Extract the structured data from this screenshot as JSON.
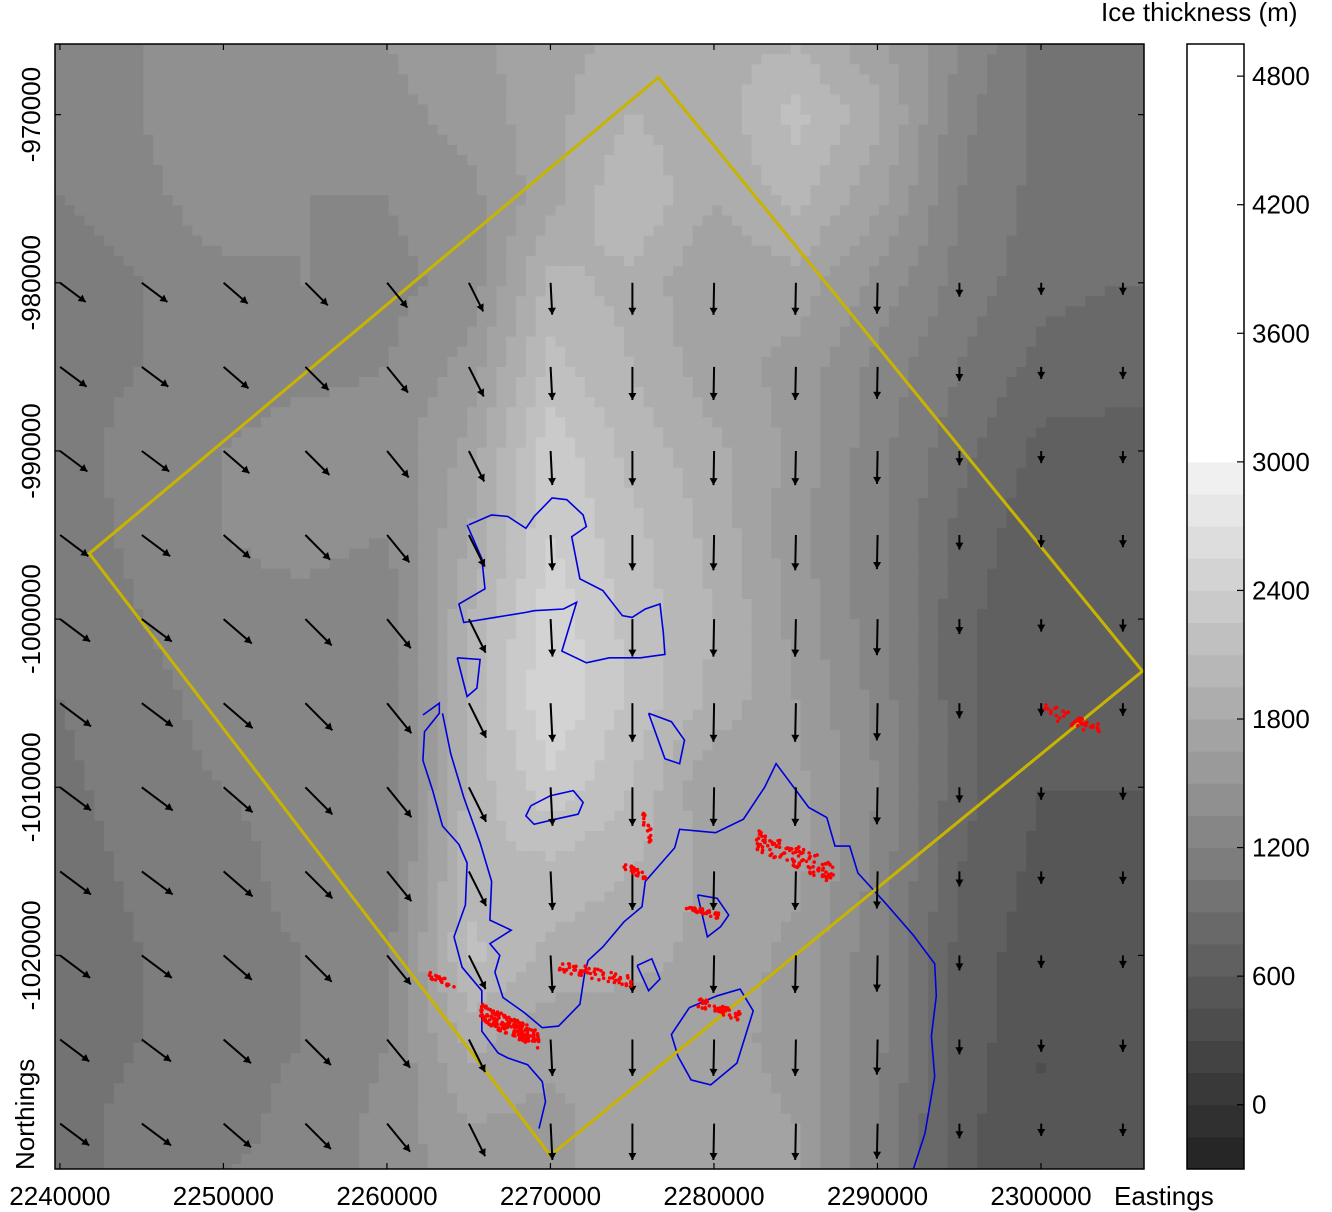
{
  "chart_data": {
    "type": "heatmap",
    "description_layers": [
      "ice thickness contour field",
      "flow direction arrows",
      "blue outline",
      "red point clusters",
      "yellow survey boundary"
    ],
    "xlabel": "Eastings",
    "ylabel": "Northings",
    "xlim": [
      2239700,
      2306300
    ],
    "ylim": [
      -1032700,
      -965800
    ],
    "x_ticks": [
      2240000,
      2250000,
      2260000,
      2270000,
      2280000,
      2290000,
      2300000
    ],
    "x_tick_labels": [
      "2240000",
      "2250000",
      "2260000",
      "2270000",
      "2280000",
      "2290000",
      "2300000"
    ],
    "y_ticks": [
      -970000,
      -980000,
      -990000,
      -1000000,
      -1010000,
      -1020000
    ],
    "y_tick_labels": [
      "-970000",
      "-980000",
      "-990000",
      "-1000000",
      "-1010000",
      "-1020000"
    ],
    "colorbar": {
      "title": "Ice thickness (m)",
      "range": [
        -300,
        4950
      ],
      "ticks": [
        0,
        600,
        1200,
        1800,
        2400,
        3000,
        3600,
        4200,
        4800
      ],
      "tick_labels": [
        "0",
        "600",
        "1200",
        "1800",
        "2400",
        "3000",
        "3600",
        "4200",
        "4800"
      ],
      "levels": [
        -300,
        -150,
        0,
        150,
        300,
        450,
        600,
        750,
        900,
        1050,
        1200,
        1350,
        1500,
        1650,
        1800,
        1950,
        2100,
        2250,
        2400,
        2550,
        2700,
        2850,
        3000
      ],
      "top_color": "#ffffff",
      "bottom_color": "#262626"
    },
    "thickness_field": {
      "columns_x": [
        2240000,
        2245000,
        2250000,
        2255000,
        2260000,
        2265000,
        2270000,
        2275000,
        2280000,
        2285000,
        2290000,
        2295000,
        2300000,
        2305000
      ],
      "rows_y": [
        -966000,
        -970000,
        -975000,
        -980000,
        -985000,
        -990000,
        -995000,
        -1000000,
        -1005000,
        -1010000,
        -1015000,
        -1020000,
        -1025000,
        -1030000,
        -1033000
      ],
      "values": [
        [
          1300,
          1350,
          1400,
          1450,
          1500,
          1600,
          1750,
          1850,
          1900,
          1950,
          1700,
          1350,
          1000,
          900
        ],
        [
          1250,
          1350,
          1500,
          1400,
          1450,
          1550,
          1750,
          1950,
          1850,
          2150,
          1850,
          1250,
          1000,
          950
        ],
        [
          1200,
          1300,
          1450,
          1350,
          1350,
          1450,
          1750,
          2100,
          1800,
          2000,
          1700,
          1200,
          1000,
          950
        ],
        [
          1100,
          1200,
          1300,
          1350,
          1300,
          1400,
          2000,
          1900,
          1650,
          1750,
          1450,
          1150,
          950,
          900
        ],
        [
          1150,
          1200,
          1250,
          1300,
          1350,
          1550,
          2150,
          1950,
          1700,
          1600,
          1300,
          1050,
          850,
          800
        ],
        [
          1150,
          1250,
          1350,
          1450,
          1400,
          1700,
          2350,
          2050,
          1850,
          1600,
          1250,
          950,
          700,
          700
        ],
        [
          1100,
          1250,
          1350,
          1400,
          1350,
          1800,
          2400,
          2150,
          1900,
          1550,
          1250,
          850,
          650,
          650
        ],
        [
          1050,
          1200,
          1300,
          1300,
          1250,
          1950,
          2500,
          2200,
          1950,
          1600,
          1250,
          800,
          600,
          650
        ],
        [
          1050,
          1150,
          1250,
          1250,
          1200,
          2000,
          2550,
          2200,
          1900,
          1650,
          1300,
          800,
          600,
          650
        ],
        [
          1000,
          1150,
          1200,
          1250,
          1200,
          2000,
          2350,
          2100,
          1650,
          1700,
          1350,
          800,
          600,
          600
        ],
        [
          950,
          1100,
          1150,
          1250,
          1250,
          2050,
          2050,
          1950,
          1750,
          1700,
          1300,
          750,
          550,
          550
        ],
        [
          900,
          1050,
          1150,
          1200,
          1300,
          2150,
          1900,
          1850,
          1750,
          1600,
          1250,
          700,
          500,
          500
        ],
        [
          950,
          1050,
          1150,
          1200,
          1350,
          1850,
          1700,
          1700,
          1700,
          1600,
          1250,
          700,
          450,
          500
        ],
        [
          1000,
          1100,
          1150,
          1250,
          1400,
          1650,
          1600,
          1750,
          1700,
          1650,
          1200,
          650,
          450,
          500
        ],
        [
          1000,
          1100,
          1200,
          1250,
          1400,
          1600,
          1600,
          1750,
          1700,
          1650,
          1200,
          650,
          450,
          500
        ]
      ]
    },
    "flow_arrows": {
      "columns_x": [
        2240500,
        2245500,
        2250500,
        2255500,
        2260500,
        2265500,
        2270500,
        2275500,
        2280500,
        2285500,
        2290500,
        2295500,
        2300500,
        2305500
      ],
      "rows_y": [
        -980000,
        -985000,
        -990000,
        -995000,
        -1000000,
        -1005000,
        -1010000,
        -1015000,
        -1020000,
        -1025000,
        -1030000
      ],
      "east_flow": [
        0.8,
        0.8,
        0.75,
        0.7,
        0.65,
        0.45,
        0.05,
        0.0,
        -0.02,
        -0.02,
        -0.02,
        0.0,
        0.0,
        0.0
      ],
      "flow_magnitude_by_row": [
        1.0,
        1.05,
        1.1,
        1.15,
        1.25,
        1.3,
        1.3,
        1.3,
        1.25,
        1.2,
        1.2
      ],
      "north_flow_by_column": [
        -0.6,
        -0.6,
        -0.65,
        -0.7,
        -0.8,
        -0.9,
        -1.0,
        -1.0,
        -1.0,
        -1.0,
        -0.95,
        -0.6,
        -0.3,
        -0.3
      ]
    },
    "survey_boundary": {
      "color": "#c8b400",
      "x": [
        2276600,
        2306200,
        2270000,
        2241800
      ],
      "y": [
        -967800,
        -1003100,
        -1031900,
        -996100
      ]
    },
    "blue_outline": {
      "color": "#0000dd",
      "segments": [
        {
          "x": [
            2265000,
            2266400,
            2267400,
            2268500,
            2269000,
            2270100,
            2271000,
            2272000,
            2272200,
            2271300,
            2271800,
            2273200,
            2274400,
            2275000,
            2275800,
            2276700,
            2276900,
            2277000,
            2275500,
            2273600,
            2272200,
            2270700,
            2271600,
            2270800,
            2269000,
            2268500,
            2266600,
            2264700,
            2264400,
            2266000,
            2265800,
            2264900
          ],
          "y": [
            -994400,
            -993800,
            -993900,
            -994600,
            -993900,
            -992800,
            -992900,
            -993800,
            -994500,
            -995100,
            -997600,
            -998300,
            -999800,
            -999900,
            -999400,
            -999100,
            -1000800,
            -1002100,
            -1002300,
            -1002300,
            -1002600,
            -1001900,
            -999000,
            -999400,
            -999500,
            -999600,
            -999900,
            -1000200,
            -999100,
            -998200,
            -996400,
            -994400
          ]
        },
        {
          "x": [
            2264300,
            2265700,
            2265500,
            2264900,
            2264300
          ],
          "y": [
            -1002300,
            -1002400,
            -1004100,
            -1004600,
            -1002300
          ]
        },
        {
          "x": [
            2263400,
            2263900,
            2264700,
            2265700,
            2266400,
            2266300,
            2267600,
            2266300,
            2266900,
            2266600,
            2267100,
            2268400,
            2269500,
            2270500,
            2271800,
            2272100,
            2272300,
            2273200,
            2274500,
            2275600,
            2275800,
            2277600,
            2277900,
            2280100,
            2281800,
            2283100,
            2283800,
            2285800,
            2286900,
            2287400,
            2288300,
            2288800,
            2290500,
            2292200,
            2293500,
            2293600,
            2293300,
            2293500,
            2292900,
            2292100
          ],
          "y": [
            -1005600,
            -1008000,
            -1010600,
            -1013300,
            -1015600,
            -1017900,
            -1018500,
            -1019300,
            -1020000,
            -1021000,
            -1022500,
            -1023400,
            -1024300,
            -1024200,
            -1022900,
            -1021000,
            -1020300,
            -1019500,
            -1018000,
            -1017100,
            -1015600,
            -1013600,
            -1012500,
            -1012700,
            -1011900,
            -1010000,
            -1008600,
            -1011200,
            -1011800,
            -1013500,
            -1013500,
            -1015100,
            -1016900,
            -1018800,
            -1020500,
            -1022400,
            -1024800,
            -1027200,
            -1030600,
            -1033000
          ]
        },
        {
          "x": [
            2262200,
            2263200,
            2263200,
            2262300,
            2262200,
            2262800,
            2263400,
            2264400,
            2264900,
            2264800,
            2264100,
            2264600,
            2265800,
            2265800,
            2266800,
            2267400,
            2268600,
            2269500,
            2269700,
            2269300
          ],
          "y": [
            -1005700,
            -1005000,
            -1005600,
            -1006700,
            -1008400,
            -1010200,
            -1012300,
            -1013400,
            -1014500,
            -1017000,
            -1018900,
            -1020700,
            -1022100,
            -1024500,
            -1025800,
            -1026100,
            -1026500,
            -1027500,
            -1028700,
            -1030300
          ]
        },
        {
          "x": [
            2268800,
            2270000,
            2271400,
            2272000,
            2271700,
            2270300,
            2269000,
            2268500,
            2268800
          ],
          "y": [
            -1011100,
            -1010500,
            -1010200,
            -1010900,
            -1011600,
            -1011900,
            -1012200,
            -1011700,
            -1011100
          ]
        },
        {
          "x": [
            2276000,
            2277400,
            2278200,
            2277900,
            2277000,
            2276000
          ],
          "y": [
            -1005600,
            -1006100,
            -1007200,
            -1008600,
            -1008300,
            -1005600
          ]
        },
        {
          "x": [
            2279000,
            2280200,
            2280900,
            2280400,
            2279600,
            2279000
          ],
          "y": [
            -1016400,
            -1016600,
            -1017600,
            -1018300,
            -1018900,
            -1016400
          ]
        },
        {
          "x": [
            2278500,
            2280200,
            2281600,
            2282400,
            2281400,
            2279800,
            2278600,
            2277800,
            2277400,
            2278500
          ],
          "y": [
            -1023100,
            -1022400,
            -1022000,
            -1023300,
            -1026400,
            -1027700,
            -1027400,
            -1026000,
            -1024700,
            -1023100
          ]
        },
        {
          "x": [
            2275300,
            2276200,
            2276700,
            2276000,
            2275300
          ],
          "y": [
            -1020600,
            -1020200,
            -1021400,
            -1022100,
            -1020600
          ]
        }
      ]
    },
    "red_points": {
      "color": "#ff0000",
      "clusters": [
        {
          "center": [
            2267500,
            -1024200
          ],
          "spread": [
            1800,
            1300
          ],
          "count": 180
        },
        {
          "center": [
            2272800,
            -1021100
          ],
          "spread": [
            2300,
            800
          ],
          "count": 60
        },
        {
          "center": [
            2275200,
            -1015000
          ],
          "spread": [
            700,
            500
          ],
          "count": 25
        },
        {
          "center": [
            2275900,
            -1012400
          ],
          "spread": [
            300,
            1200
          ],
          "count": 18
        },
        {
          "center": [
            2279300,
            -1017400
          ],
          "spread": [
            1000,
            400
          ],
          "count": 40
        },
        {
          "center": [
            2285000,
            -1014100
          ],
          "spread": [
            2400,
            1600
          ],
          "count": 110
        },
        {
          "center": [
            2280300,
            -1023200
          ],
          "spread": [
            1300,
            700
          ],
          "count": 45
        },
        {
          "center": [
            2302000,
            -1006000
          ],
          "spread": [
            1800,
            1000
          ],
          "count": 40
        },
        {
          "center": [
            2263400,
            -1021500
          ],
          "spread": [
            800,
            500
          ],
          "count": 20
        }
      ]
    }
  }
}
